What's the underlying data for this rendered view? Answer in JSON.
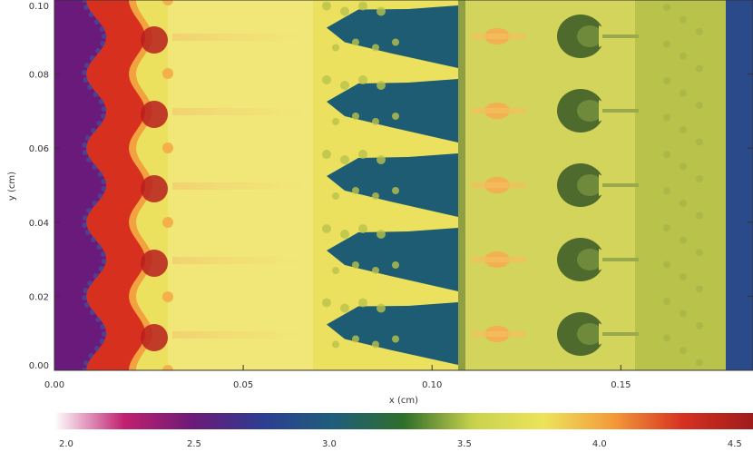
{
  "figure": {
    "x_axis": {
      "label": "x (cm)",
      "ticks": [
        "0.00",
        "0.05",
        "0.10",
        "0.15"
      ],
      "range": [
        0.0,
        0.185
      ]
    },
    "y_axis": {
      "label": "y (cm)",
      "ticks": [
        "0.00",
        "0.02",
        "0.04",
        "0.06",
        "0.08",
        "0.10"
      ],
      "range": [
        0.0,
        0.1
      ]
    },
    "colorbar": {
      "ticks": [
        "2.0",
        "2.5",
        "3.0",
        "3.5",
        "4.0",
        "4.5"
      ],
      "stops": [
        "#ffffff",
        "#c02070",
        "#6a1a78",
        "#2c3e92",
        "#1f5e7a",
        "#2f6e2a",
        "#c9d24c",
        "#ede45a",
        "#f39a3a",
        "#d63020",
        "#9e1c1c"
      ]
    },
    "colors": {
      "purple": "#6a1a7a",
      "red": "#d8301e",
      "yellow": "#ece15e",
      "teal": "#1d5c73",
      "olive": "#b9c24a",
      "blue": "#2a4a8a",
      "orange": "#f2b052",
      "dark_green": "#4e6a2c"
    }
  }
}
